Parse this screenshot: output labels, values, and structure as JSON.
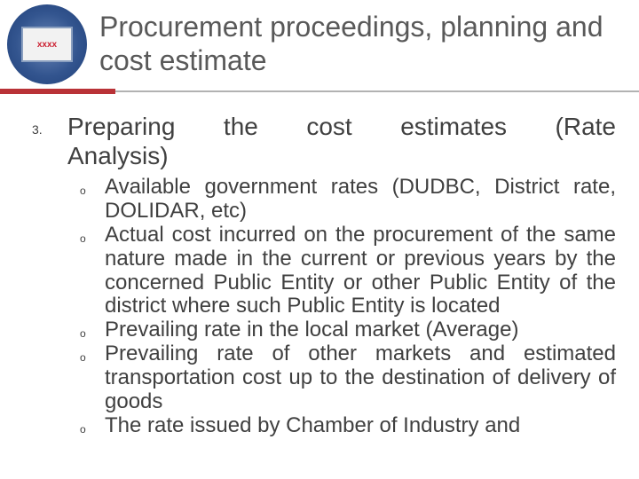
{
  "colors": {
    "title_color": "#595959",
    "body_color": "#404040",
    "accent_bar": "#b93237",
    "rule_line": "#b2b2b2",
    "logo_ring": "#33558f",
    "background": "#ffffff"
  },
  "typography": {
    "title_fontsize": 32,
    "numbered_fontsize": 28,
    "bullet_fontsize": 24,
    "marker_number_fontsize": 14,
    "marker_circle_fontsize": 12,
    "font_family": "Arial"
  },
  "logo": {
    "inner_text": "xxxx"
  },
  "title": "Procurement proceedings, planning and cost estimate",
  "list": {
    "number": "3.",
    "text_line1": "Preparing the cost estimates (Rate",
    "text_line2": "Analysis)",
    "sub_marker": "o",
    "items": [
      "Available government rates (DUDBC, District rate, DOLIDAR, etc)",
      "Actual cost incurred on the procurement of the same nature made in the current or previous years by the concerned Public Entity or other Public Entity of the district where such Public Entity is located",
      "Prevailing rate in the local market (Average)",
      "Prevailing rate of other markets and estimated transportation cost up to the destination of delivery of goods",
      "The rate issued by Chamber of Industry and"
    ]
  }
}
